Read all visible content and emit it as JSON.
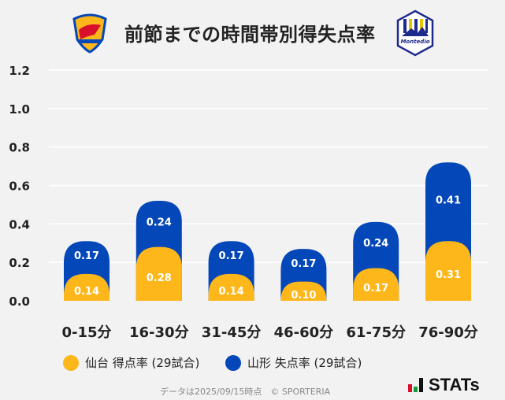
{
  "title": "前節までの時間帯別得失点率",
  "colors": {
    "home": "#fdb71a",
    "away": "#0447b8",
    "grid": "#ffffff",
    "background": "#f2f2f2"
  },
  "logos": {
    "left": "VEGALTA",
    "right": "Montedio",
    "right_sub": "YAMAGATA"
  },
  "chart_data": {
    "type": "bar",
    "stacked": true,
    "categories": [
      "0-15分",
      "16-30分",
      "31-45分",
      "46-60分",
      "61-75分",
      "76-90分"
    ],
    "series": [
      {
        "name": "仙台 得点率 (29試合)",
        "values": [
          0.14,
          0.28,
          0.14,
          0.1,
          0.17,
          0.31
        ],
        "color": "#fdb71a"
      },
      {
        "name": "山形 失点率 (29試合)",
        "values": [
          0.17,
          0.24,
          0.17,
          0.17,
          0.24,
          0.41
        ],
        "color": "#0447b8"
      }
    ],
    "value_labels": {
      "home": [
        "0.14",
        "0.28",
        "0.14",
        "0.10",
        "0.17",
        "0.31"
      ],
      "away": [
        "0.17",
        "0.24",
        "0.17",
        "0.17",
        "0.24",
        "0.41"
      ]
    },
    "ylim": [
      0,
      1.2
    ],
    "yticks": [
      "0.0",
      "0.2",
      "0.4",
      "0.6",
      "0.8",
      "1.0",
      "1.2"
    ],
    "grid": true,
    "legend": "bottom"
  },
  "footer": "データは2025/09/15時点　© SPORTERIA",
  "brand": "STATs"
}
